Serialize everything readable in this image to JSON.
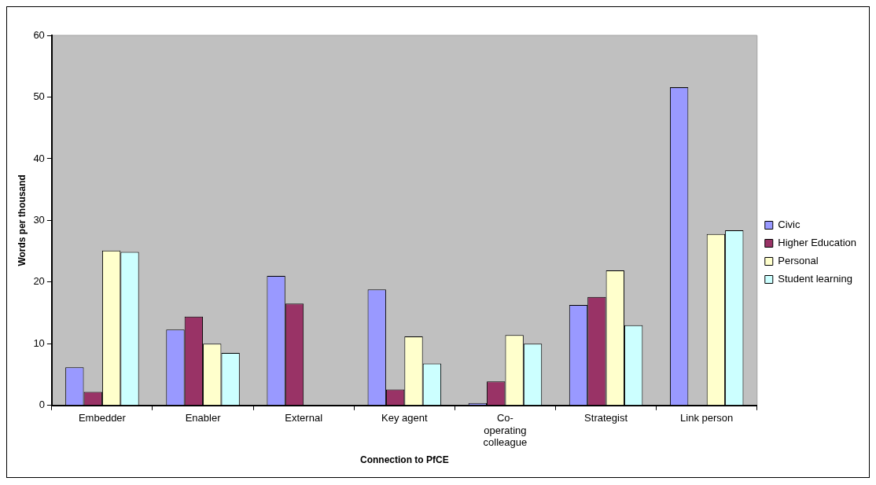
{
  "chart_data": {
    "type": "bar",
    "xlabel": "Connection to PfCE",
    "ylabel": "Words per thousand",
    "categories": [
      "Embedder",
      "Enabler",
      "External",
      "Key agent",
      "Co-operating colleague",
      "Strategist",
      "Link person"
    ],
    "series": [
      {
        "name": "Civic",
        "color": "#9999ff",
        "values": [
          6.2,
          12.3,
          21,
          18.8,
          0.4,
          16.3,
          51.6
        ]
      },
      {
        "name": "Higher Education",
        "color": "#993366",
        "values": [
          2.2,
          14.4,
          16.5,
          2.6,
          3.9,
          17.6,
          null
        ]
      },
      {
        "name": "Personal",
        "color": "#ffffcc",
        "values": [
          25.1,
          10,
          null,
          11.2,
          11.4,
          21.9,
          27.8
        ]
      },
      {
        "name": "Student learning",
        "color": "#ccffff",
        "values": [
          24.9,
          8.5,
          null,
          6.8,
          10,
          13,
          28.4
        ]
      }
    ],
    "ylim": [
      0,
      60
    ],
    "yticks": [
      0,
      10,
      20,
      30,
      40,
      50,
      60
    ],
    "grid": false,
    "legend": "right"
  }
}
